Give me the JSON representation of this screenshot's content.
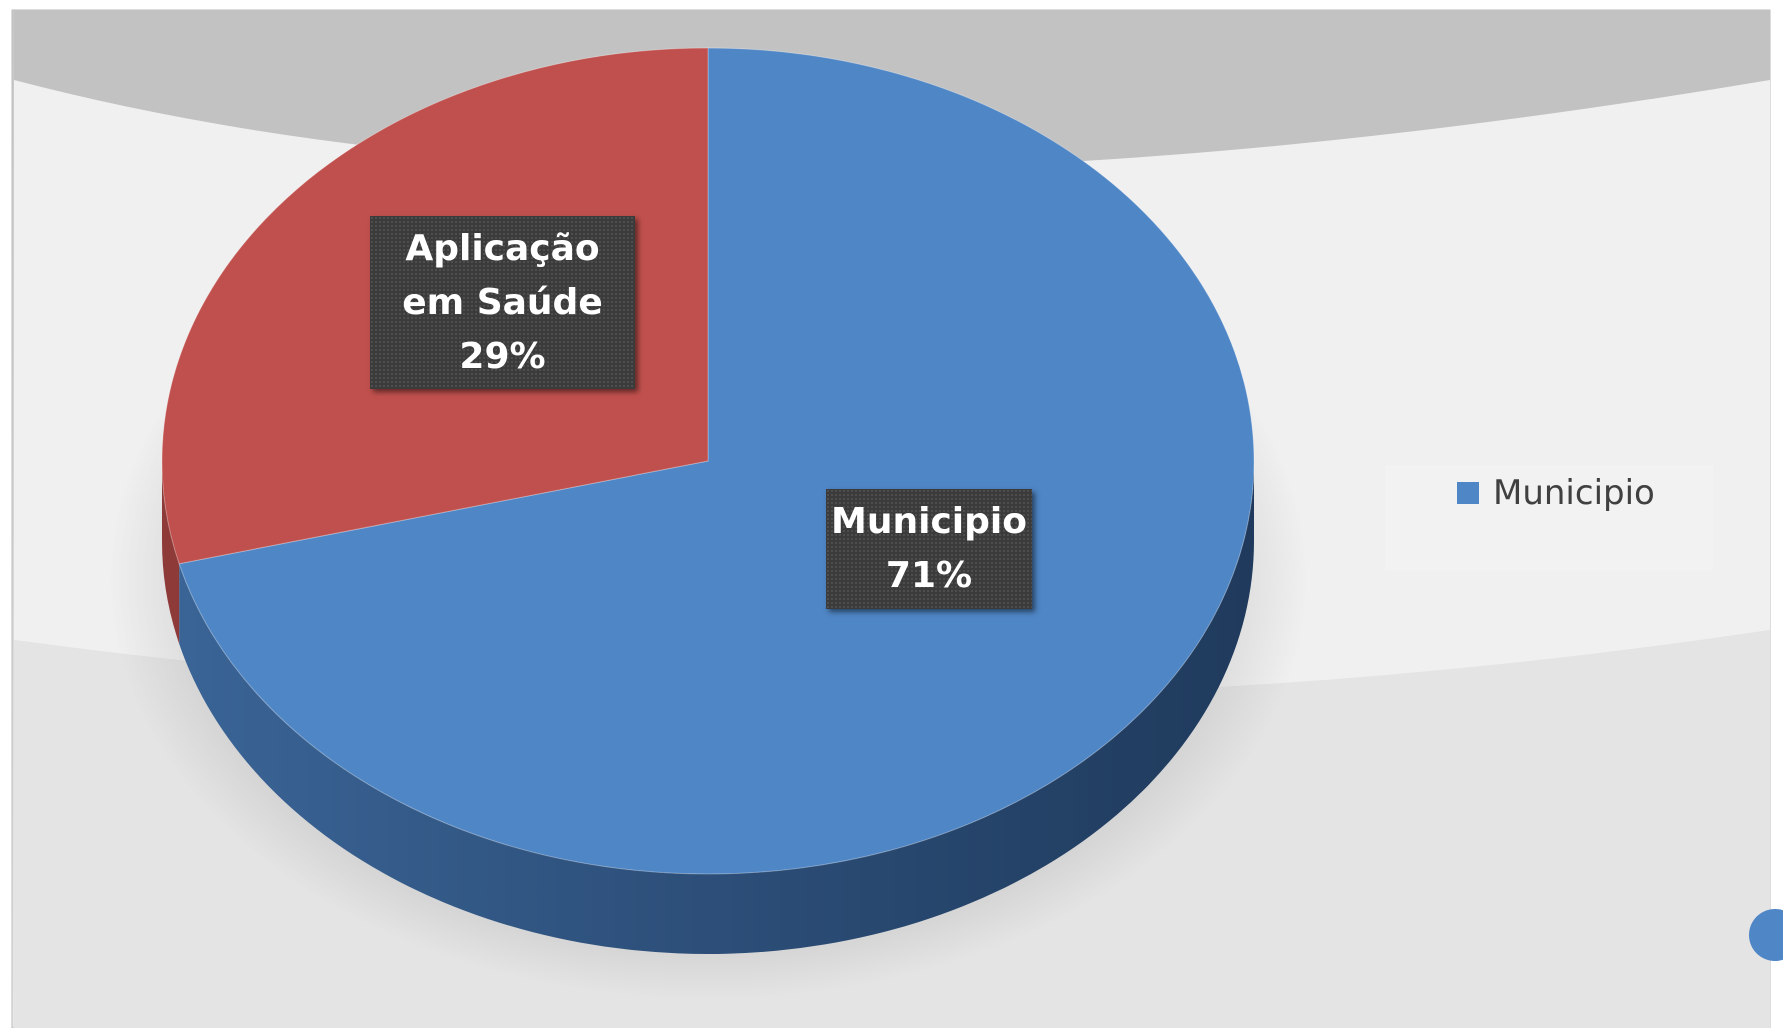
{
  "chart_data": {
    "type": "pie",
    "categories": [
      "Municipio",
      "Aplicação em Saúde"
    ],
    "values": [
      71,
      29
    ],
    "value_labels": [
      "71%",
      "29%"
    ],
    "colors": [
      "#4f86c6",
      "#c0504d"
    ],
    "legend": {
      "position": "right",
      "items": [
        "Municipio"
      ]
    }
  }
}
